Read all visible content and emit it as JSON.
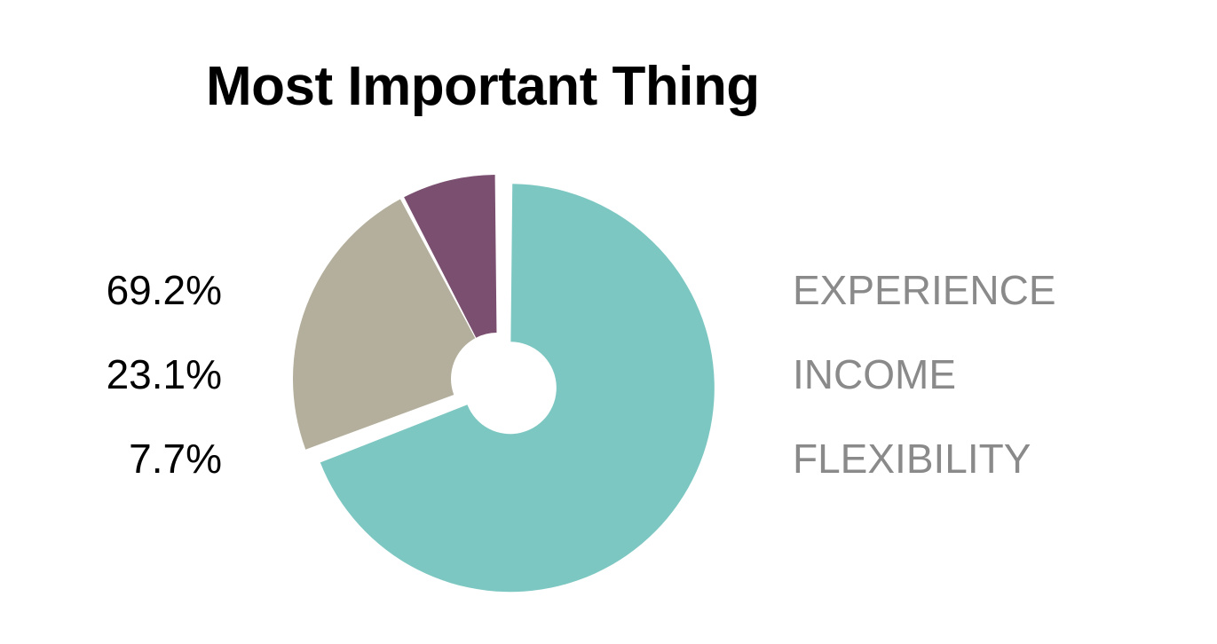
{
  "chart_data": {
    "type": "pie",
    "title": "Most Important Thing",
    "categories": [
      "EXPERIENCE",
      "INCOME",
      "FLEXIBILITY"
    ],
    "values": [
      69.2,
      23.1,
      7.7
    ],
    "value_labels": [
      "69.2%",
      "23.1%",
      "7.7%"
    ],
    "colors": [
      "#7dc7c2",
      "#b3af9c",
      "#7a4f70"
    ],
    "donut": true,
    "exploded_slice": "EXPERIENCE"
  }
}
